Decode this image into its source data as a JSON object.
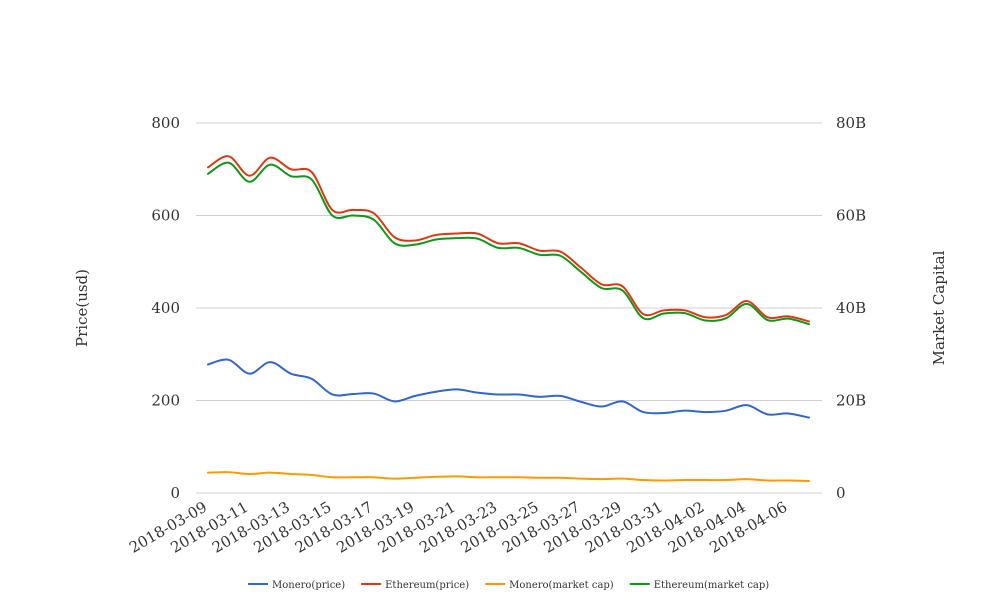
{
  "chart_data": {
    "type": "line",
    "title": "",
    "xlabel": "",
    "ylabel": "Price(usd)",
    "y2label": "Market Capital",
    "ylim": [
      0,
      800
    ],
    "y2lim": [
      0,
      80
    ],
    "yticks": [
      "0",
      "200",
      "400",
      "600",
      "800"
    ],
    "y2ticks": [
      "0",
      "20B",
      "40B",
      "60B",
      "80B"
    ],
    "grid": true,
    "legend_position": "bottom",
    "x": [
      "2018-03-09",
      "2018-03-10",
      "2018-03-11",
      "2018-03-12",
      "2018-03-13",
      "2018-03-14",
      "2018-03-15",
      "2018-03-16",
      "2018-03-17",
      "2018-03-18",
      "2018-03-19",
      "2018-03-20",
      "2018-03-21",
      "2018-03-22",
      "2018-03-23",
      "2018-03-24",
      "2018-03-25",
      "2018-03-26",
      "2018-03-27",
      "2018-03-28",
      "2018-03-29",
      "2018-03-30",
      "2018-03-31",
      "2018-04-01",
      "2018-04-02",
      "2018-04-03",
      "2018-04-04",
      "2018-04-05",
      "2018-04-06",
      "2018-04-07"
    ],
    "xtick_labels": [
      "2018-03-09",
      "2018-03-11",
      "2018-03-13",
      "2018-03-15",
      "2018-03-17",
      "2018-03-19",
      "2018-03-21",
      "2018-03-23",
      "2018-03-25",
      "2018-03-27",
      "2018-03-29",
      "2018-03-31",
      "2018-04-02",
      "2018-04-04",
      "2018-04-06"
    ],
    "series": [
      {
        "name": "Monero(price)",
        "axis": "left",
        "color": "#3366cc",
        "values": [
          278,
          288,
          258,
          283,
          258,
          247,
          213,
          214,
          215,
          198,
          210,
          219,
          224,
          217,
          213,
          213,
          208,
          210,
          197,
          187,
          198,
          175,
          173,
          178,
          175,
          178,
          190,
          170,
          172,
          163
        ]
      },
      {
        "name": "Ethereum(price)",
        "axis": "left",
        "color": "#dc3912",
        "values": [
          704,
          728,
          686,
          725,
          700,
          694,
          612,
          612,
          605,
          553,
          546,
          558,
          561,
          561,
          540,
          540,
          524,
          522,
          487,
          451,
          447,
          387,
          395,
          395,
          380,
          385,
          415,
          380,
          382,
          371
        ]
      },
      {
        "name": "Monero(market cap)",
        "axis": "right",
        "color": "#ff9900",
        "values": [
          4.4,
          4.5,
          4.1,
          4.4,
          4.1,
          3.9,
          3.4,
          3.4,
          3.4,
          3.1,
          3.3,
          3.5,
          3.6,
          3.4,
          3.4,
          3.4,
          3.3,
          3.3,
          3.1,
          3.0,
          3.1,
          2.8,
          2.7,
          2.8,
          2.8,
          2.8,
          3.0,
          2.7,
          2.7,
          2.6
        ]
      },
      {
        "name": "Ethereum(market cap)",
        "axis": "right",
        "color": "#109618",
        "values": [
          69.0,
          71.4,
          67.3,
          71.0,
          68.5,
          67.8,
          60.0,
          60.0,
          59.1,
          54.0,
          53.7,
          54.8,
          55.1,
          55.0,
          53.0,
          53.0,
          51.5,
          51.3,
          47.8,
          44.3,
          43.8,
          37.8,
          38.8,
          38.9,
          37.3,
          37.8,
          40.9,
          37.4,
          37.7,
          36.5
        ]
      }
    ]
  }
}
